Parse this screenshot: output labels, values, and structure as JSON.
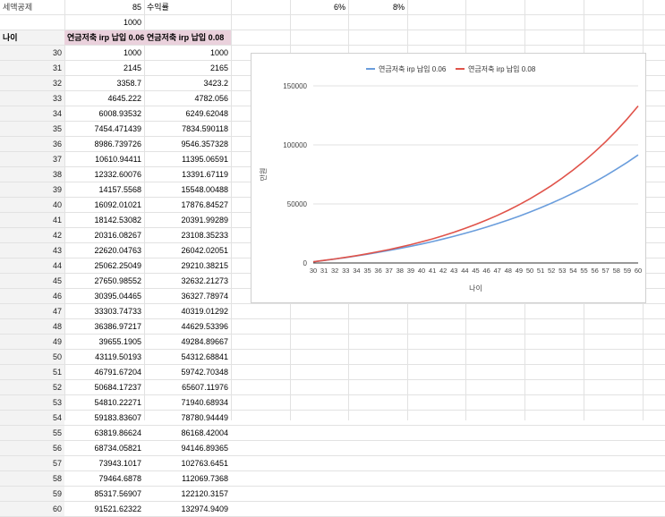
{
  "sheet": {
    "top_label": "세액공제",
    "top_value": "85",
    "rate_label": "수익률",
    "rate_a": "6%",
    "rate_b": "8%",
    "initial": "1000",
    "age_header": "나이",
    "col_b_header": "연금저축 irp 납입 0.06",
    "col_c_header": "연금저축 irp 납입 0.08",
    "rows": [
      {
        "age": "30",
        "a": "1000",
        "b": "1000"
      },
      {
        "age": "31",
        "a": "2145",
        "b": "2165"
      },
      {
        "age": "32",
        "a": "3358.7",
        "b": "3423.2"
      },
      {
        "age": "33",
        "a": "4645.222",
        "b": "4782.056"
      },
      {
        "age": "34",
        "a": "6008.93532",
        "b": "6249.62048"
      },
      {
        "age": "35",
        "a": "7454.471439",
        "b": "7834.590118"
      },
      {
        "age": "36",
        "a": "8986.739726",
        "b": "9546.357328"
      },
      {
        "age": "37",
        "a": "10610.94411",
        "b": "11395.06591"
      },
      {
        "age": "38",
        "a": "12332.60076",
        "b": "13391.67119"
      },
      {
        "age": "39",
        "a": "14157.5568",
        "b": "15548.00488"
      },
      {
        "age": "40",
        "a": "16092.01021",
        "b": "17876.84527"
      },
      {
        "age": "41",
        "a": "18142.53082",
        "b": "20391.99289"
      },
      {
        "age": "42",
        "a": "20316.08267",
        "b": "23108.35233"
      },
      {
        "age": "43",
        "a": "22620.04763",
        "b": "26042.02051"
      },
      {
        "age": "44",
        "a": "25062.25049",
        "b": "29210.38215"
      },
      {
        "age": "45",
        "a": "27650.98552",
        "b": "32632.21273"
      },
      {
        "age": "46",
        "a": "30395.04465",
        "b": "36327.78974"
      },
      {
        "age": "47",
        "a": "33303.74733",
        "b": "40319.01292"
      },
      {
        "age": "48",
        "a": "36386.97217",
        "b": "44629.53396"
      },
      {
        "age": "49",
        "a": "39655.1905",
        "b": "49284.89667"
      },
      {
        "age": "50",
        "a": "43119.50193",
        "b": "54312.68841"
      },
      {
        "age": "51",
        "a": "46791.67204",
        "b": "59742.70348"
      },
      {
        "age": "52",
        "a": "50684.17237",
        "b": "65607.11976"
      },
      {
        "age": "53",
        "a": "54810.22271",
        "b": "71940.68934"
      },
      {
        "age": "54",
        "a": "59183.83607",
        "b": "78780.94449"
      },
      {
        "age": "55",
        "a": "63819.86624",
        "b": "86168.42004"
      },
      {
        "age": "56",
        "a": "68734.05821",
        "b": "94146.89365"
      },
      {
        "age": "57",
        "a": "73943.1017",
        "b": "102763.6451"
      },
      {
        "age": "58",
        "a": "79464.6878",
        "b": "112069.7368"
      },
      {
        "age": "59",
        "a": "85317.56907",
        "b": "122120.3157"
      },
      {
        "age": "60",
        "a": "91521.62322",
        "b": "132974.9409"
      }
    ]
  },
  "chart_data": {
    "type": "line",
    "xlabel": "나이",
    "ylabel": "만원",
    "x": [
      30,
      31,
      32,
      33,
      34,
      35,
      36,
      37,
      38,
      39,
      40,
      41,
      42,
      43,
      44,
      45,
      46,
      47,
      48,
      49,
      50,
      51,
      52,
      53,
      54,
      55,
      56,
      57,
      58,
      59,
      60
    ],
    "ylim": [
      0,
      150000
    ],
    "yticks": [
      "0",
      "50000",
      "100000",
      "150000"
    ],
    "ytick_values": [
      0,
      50000,
      100000,
      150000
    ],
    "grid": true,
    "legend_position": "top",
    "series": [
      {
        "name": "연금저축 irp 납입 0.06",
        "color": "#6a9ddc",
        "values": [
          1000,
          2145,
          3358.7,
          4645.222,
          6008.93532,
          7454.471439,
          8986.739726,
          10610.94411,
          12332.60076,
          14157.5568,
          16092.01021,
          18142.53082,
          20316.08267,
          22620.04763,
          25062.25049,
          27650.98552,
          30395.04465,
          33303.74733,
          36386.97217,
          39655.1905,
          43119.50193,
          46791.67204,
          50684.17237,
          54810.22271,
          59183.83607,
          63819.86624,
          68734.05821,
          73943.1017,
          79464.6878,
          85317.56907,
          91521.62322
        ]
      },
      {
        "name": "연금저축 irp 납입 0.08",
        "color": "#e0534a",
        "values": [
          1000,
          2165,
          3423.2,
          4782.056,
          6249.62048,
          7834.590118,
          9546.357328,
          11395.06591,
          13391.67119,
          15548.00488,
          17876.84527,
          20391.99289,
          23108.35233,
          26042.02051,
          29210.38215,
          32632.21273,
          36327.78974,
          40319.01292,
          44629.53396,
          49284.89667,
          54312.68841,
          59742.70348,
          65607.11976,
          71940.68934,
          78780.94449,
          86168.42004,
          94146.89365,
          102763.6451,
          112069.7368,
          122120.3157,
          132974.9409
        ]
      }
    ]
  }
}
